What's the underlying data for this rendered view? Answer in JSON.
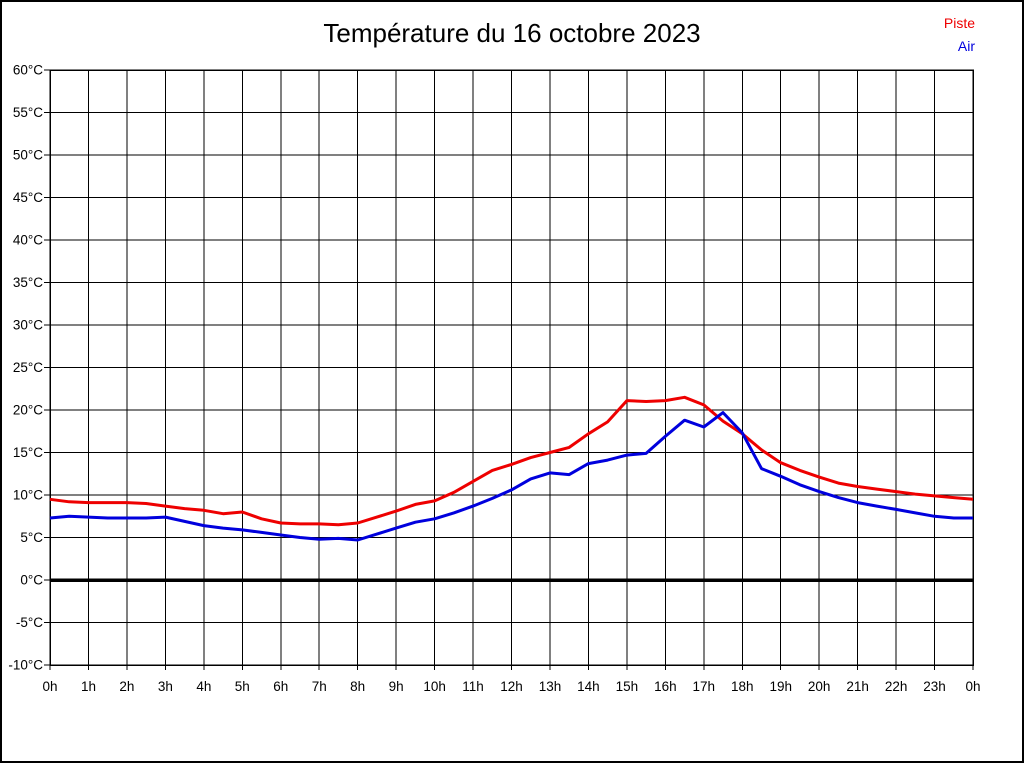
{
  "page": {
    "background": "#ffffff",
    "border_color": "#000000"
  },
  "header": {
    "title": "Température du 16 octobre 2023"
  },
  "legend": [
    {
      "label": "Piste",
      "color": "#ee0000"
    },
    {
      "label": "Air",
      "color": "#0000dd"
    }
  ],
  "chart_data": {
    "type": "line",
    "title": "Température du 16 octobre 2023",
    "xlabel": "",
    "ylabel": "",
    "xlim": [
      0,
      24
    ],
    "ylim": [
      -10,
      60
    ],
    "grid": true,
    "zero_line_value": 0,
    "legend_position": "top-right",
    "x_unit": "hours",
    "x": [
      0,
      0.5,
      1,
      1.5,
      2,
      2.5,
      3,
      3.5,
      4,
      4.5,
      5,
      5.5,
      6,
      6.5,
      7,
      7.5,
      8,
      8.5,
      9,
      9.5,
      10,
      10.5,
      11,
      11.5,
      12,
      12.5,
      13,
      13.5,
      14,
      14.5,
      15,
      15.5,
      16,
      16.5,
      17,
      17.5,
      18,
      18.5,
      19,
      19.5,
      20,
      20.5,
      21,
      21.5,
      22,
      22.5,
      23,
      23.5,
      24
    ],
    "series": [
      {
        "name": "Piste",
        "color": "#ee0000",
        "values": [
          9.5,
          9.2,
          9.1,
          9.1,
          9.1,
          9.0,
          8.7,
          8.4,
          8.2,
          7.8,
          8.0,
          7.2,
          6.7,
          6.6,
          6.6,
          6.5,
          6.7,
          7.4,
          8.1,
          8.9,
          9.3,
          10.3,
          11.6,
          12.9,
          13.6,
          14.4,
          15.0,
          15.6,
          17.2,
          18.6,
          21.1,
          21.0,
          21.1,
          21.5,
          20.6,
          18.7,
          17.2,
          15.3,
          13.8,
          12.9,
          12.1,
          11.4,
          11.0,
          10.7,
          10.4,
          10.1,
          9.9,
          9.7,
          9.5
        ]
      },
      {
        "name": "Air",
        "color": "#0000dd",
        "values": [
          7.3,
          7.5,
          7.4,
          7.3,
          7.3,
          7.3,
          7.4,
          6.9,
          6.4,
          6.1,
          5.9,
          5.6,
          5.3,
          5.0,
          4.8,
          4.9,
          4.7,
          5.4,
          6.1,
          6.8,
          7.2,
          7.9,
          8.7,
          9.6,
          10.6,
          11.9,
          12.6,
          12.4,
          13.7,
          14.1,
          14.7,
          14.9,
          16.9,
          18.8,
          18.0,
          19.7,
          17.3,
          13.1,
          12.2,
          11.2,
          10.4,
          9.7,
          9.1,
          8.7,
          8.3,
          7.9,
          7.5,
          7.3,
          7.3
        ]
      }
    ],
    "x_ticks": [
      {
        "value": 0,
        "label": "0h"
      },
      {
        "value": 1,
        "label": "1h"
      },
      {
        "value": 2,
        "label": "2h"
      },
      {
        "value": 3,
        "label": "3h"
      },
      {
        "value": 4,
        "label": "4h"
      },
      {
        "value": 5,
        "label": "5h"
      },
      {
        "value": 6,
        "label": "6h"
      },
      {
        "value": 7,
        "label": "7h"
      },
      {
        "value": 8,
        "label": "8h"
      },
      {
        "value": 9,
        "label": "9h"
      },
      {
        "value": 10,
        "label": "10h"
      },
      {
        "value": 11,
        "label": "11h"
      },
      {
        "value": 12,
        "label": "12h"
      },
      {
        "value": 13,
        "label": "13h"
      },
      {
        "value": 14,
        "label": "14h"
      },
      {
        "value": 15,
        "label": "15h"
      },
      {
        "value": 16,
        "label": "16h"
      },
      {
        "value": 17,
        "label": "17h"
      },
      {
        "value": 18,
        "label": "18h"
      },
      {
        "value": 19,
        "label": "19h"
      },
      {
        "value": 20,
        "label": "20h"
      },
      {
        "value": 21,
        "label": "21h"
      },
      {
        "value": 22,
        "label": "22h"
      },
      {
        "value": 23,
        "label": "23h"
      },
      {
        "value": 24,
        "label": "0h"
      }
    ],
    "y_ticks": [
      {
        "value": 60,
        "label": "60°C"
      },
      {
        "value": 55,
        "label": "55°C"
      },
      {
        "value": 50,
        "label": "50°C"
      },
      {
        "value": 45,
        "label": "45°C"
      },
      {
        "value": 40,
        "label": "40°C"
      },
      {
        "value": 35,
        "label": "35°C"
      },
      {
        "value": 30,
        "label": "30°C"
      },
      {
        "value": 25,
        "label": "25°C"
      },
      {
        "value": 20,
        "label": "20°C"
      },
      {
        "value": 15,
        "label": "15°C"
      },
      {
        "value": 10,
        "label": "10°C"
      },
      {
        "value": 5,
        "label": "5°C"
      },
      {
        "value": 0,
        "label": "0°C"
      },
      {
        "value": -5,
        "label": "-5°C"
      },
      {
        "value": -10,
        "label": "-10°C"
      }
    ]
  }
}
